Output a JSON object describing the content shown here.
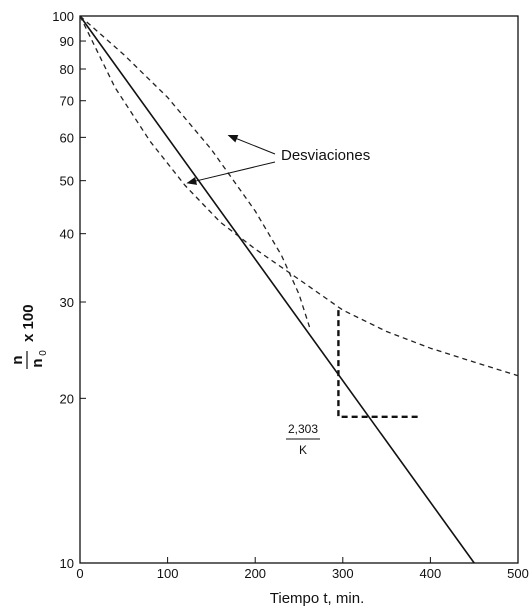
{
  "chart_data": {
    "type": "line",
    "xlabel": "Tiempo  t, min.",
    "ylabel": {
      "numerator": "n",
      "denominator": "n",
      "denominator_subscript": "0",
      "suffix": "x 100"
    },
    "xlim": [
      0,
      500
    ],
    "ylim": [
      10,
      100
    ],
    "yscale": "log",
    "grid": false,
    "x_ticks": [
      0,
      100,
      200,
      300,
      400,
      500
    ],
    "y_ticks": [
      10,
      20,
      30,
      40,
      50,
      60,
      70,
      80,
      90,
      100
    ],
    "series": [
      {
        "style": "solid",
        "color": "#111111",
        "points": [
          [
            0,
            100
          ],
          [
            450,
            10
          ]
        ]
      },
      {
        "style": "dashed",
        "color": "#222222",
        "points": [
          [
            0,
            100
          ],
          [
            50,
            85
          ],
          [
            100,
            71
          ],
          [
            150,
            57
          ],
          [
            200,
            44
          ],
          [
            230,
            36.5
          ],
          [
            250,
            31
          ],
          [
            262,
            27
          ]
        ]
      },
      {
        "style": "dashed",
        "color": "#222222",
        "points": [
          [
            0,
            100
          ],
          [
            40,
            74
          ],
          [
            80,
            59
          ],
          [
            120,
            49
          ],
          [
            160,
            42
          ],
          [
            200,
            37.5
          ],
          [
            250,
            33
          ],
          [
            300,
            29
          ],
          [
            350,
            26.5
          ],
          [
            400,
            24.7
          ],
          [
            450,
            23.3
          ],
          [
            500,
            22
          ]
        ]
      }
    ],
    "annotations": {
      "deviations_label": "Desviaciones",
      "deviation_arrow_targets": [
        [
          165,
          60.5
        ],
        [
          118,
          49.5
        ]
      ],
      "slope_label_numerator": "2,303",
      "slope_label_denominator": "K",
      "slope_triangle": {
        "x_start": 295,
        "x_end": 390,
        "y_top": 29,
        "y_bottom": 18.5
      }
    }
  }
}
